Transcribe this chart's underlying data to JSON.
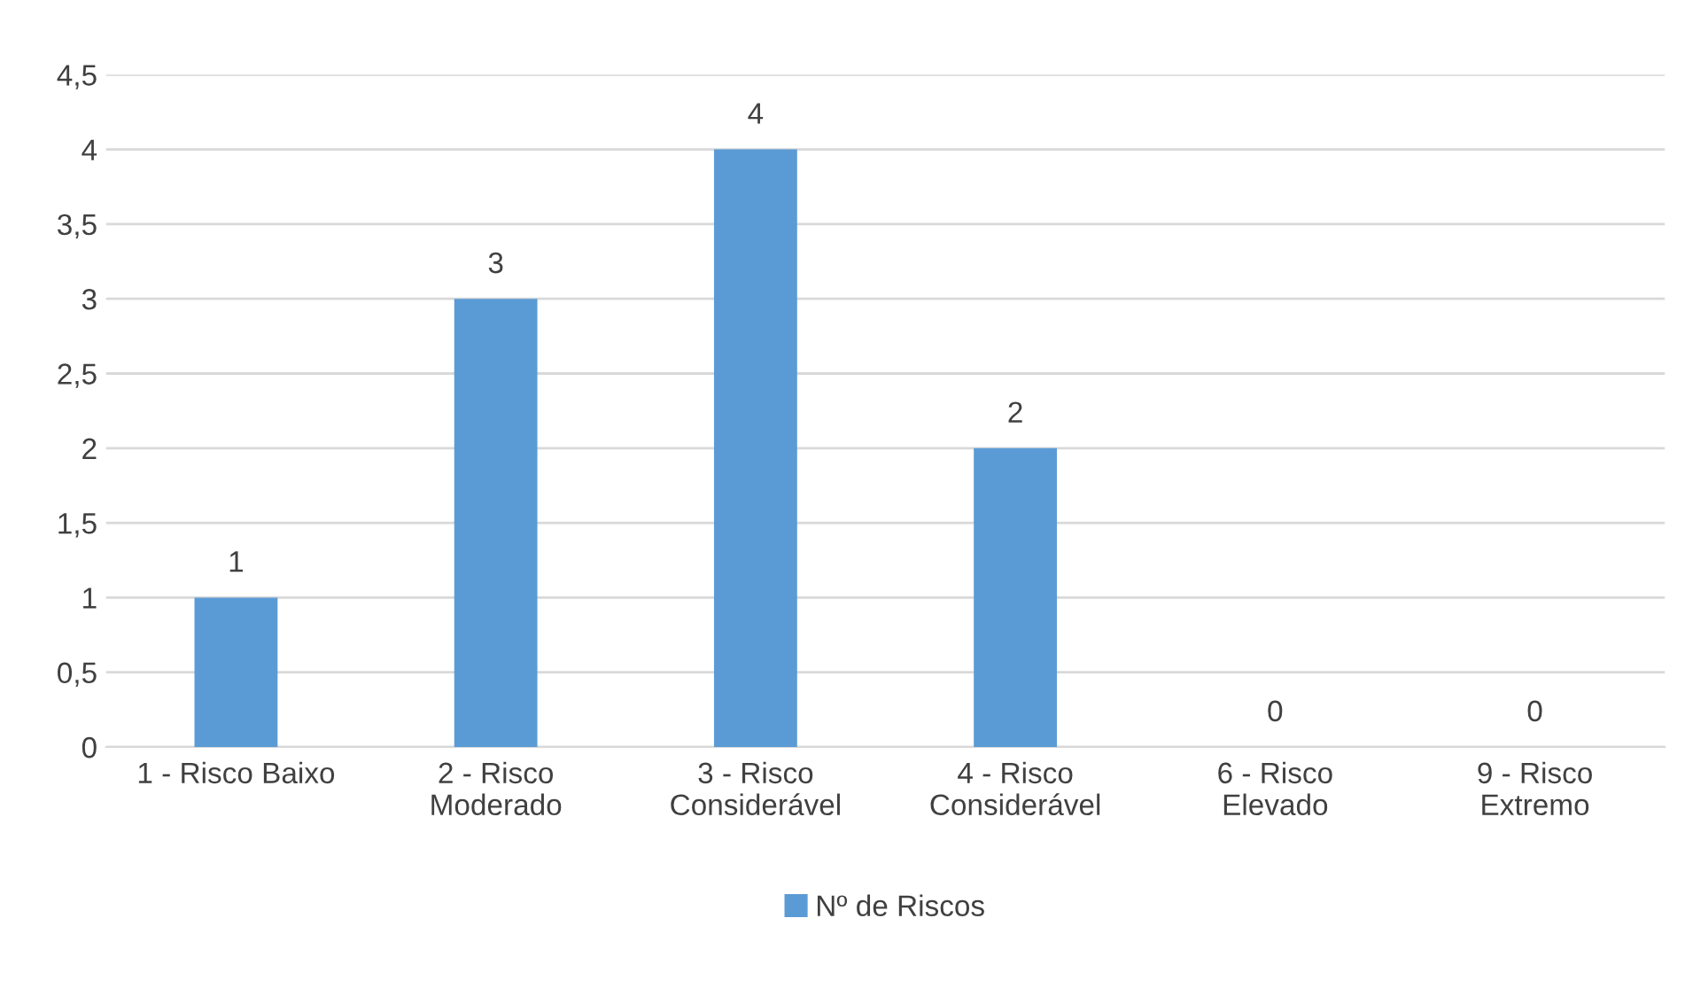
{
  "chart_data": {
    "type": "bar",
    "categories": [
      "1 - Risco Baixo",
      "2 - Risco Moderado",
      "3 - Risco Considerável",
      "4 - Risco Considerável",
      "6 - Risco Elevado",
      "9 - Risco Extremo"
    ],
    "series": [
      {
        "name": "Nº de Riscos",
        "color": "#5b9bd5",
        "values": [
          1,
          3,
          4,
          2,
          0,
          0
        ]
      }
    ],
    "ylim": [
      0,
      4.5
    ],
    "yticks": [
      0,
      {
        "value": 0.5,
        "label": "0,5"
      },
      1,
      {
        "value": 1.5,
        "label": "1,5"
      },
      2,
      {
        "value": 2.5,
        "label": "2,5"
      },
      3,
      {
        "value": 3.5,
        "label": "3,5"
      },
      4,
      {
        "value": 4.5,
        "label": "4,5"
      }
    ],
    "grid": "y",
    "legend": "bottom",
    "data_labels": true
  }
}
